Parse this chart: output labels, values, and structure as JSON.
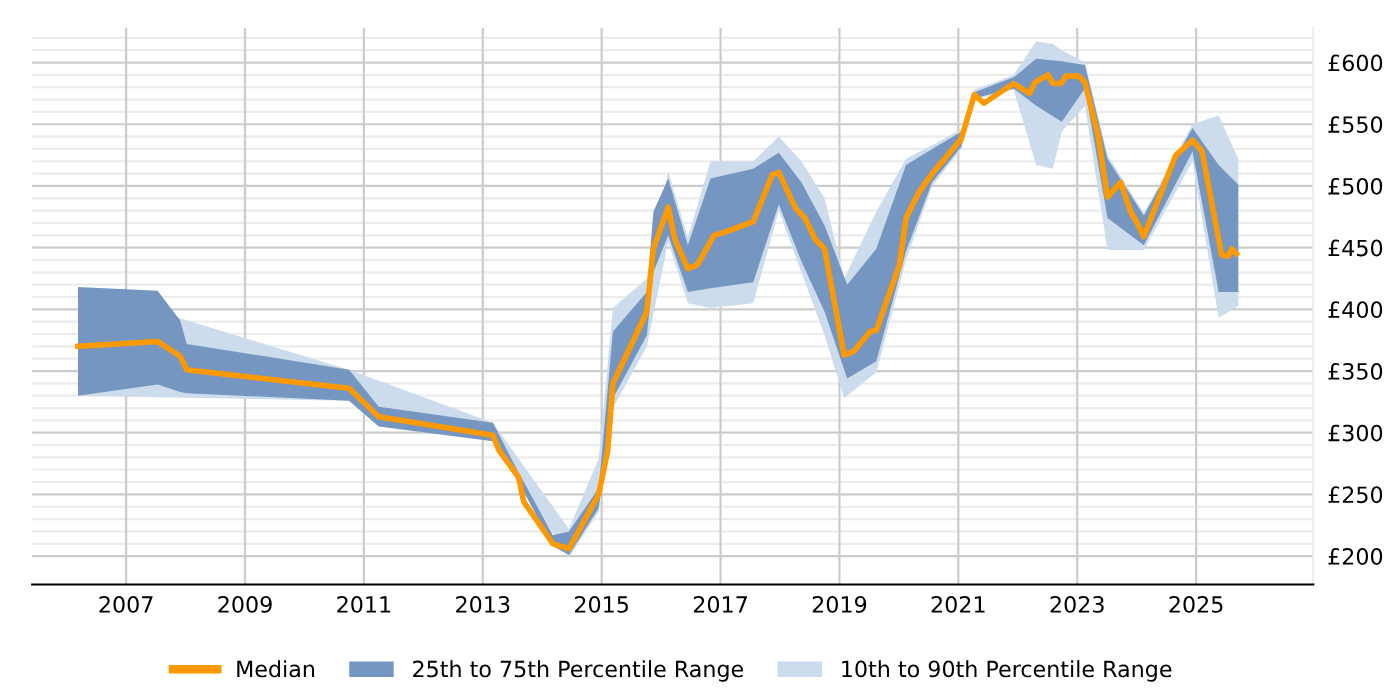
{
  "chart_data": {
    "type": "line",
    "xlim": [
      2005.42,
      2026.97
    ],
    "xticks": [
      2007,
      2009,
      2011,
      2013,
      2015,
      2017,
      2019,
      2021,
      2023,
      2025
    ],
    "ylim": [
      177,
      628
    ],
    "yticks": [
      {
        "value": 200,
        "label": "£200"
      },
      {
        "value": 210,
        "label": null
      },
      {
        "value": 220,
        "label": null
      },
      {
        "value": 230,
        "label": null
      },
      {
        "value": 240,
        "label": null
      },
      {
        "value": 250,
        "label": "£250"
      },
      {
        "value": 260,
        "label": null
      },
      {
        "value": 270,
        "label": null
      },
      {
        "value": 280,
        "label": null
      },
      {
        "value": 290,
        "label": null
      },
      {
        "value": 300,
        "label": "£300"
      },
      {
        "value": 310,
        "label": null
      },
      {
        "value": 320,
        "label": null
      },
      {
        "value": 330,
        "label": null
      },
      {
        "value": 340,
        "label": null
      },
      {
        "value": 350,
        "label": "£350"
      },
      {
        "value": 360,
        "label": null
      },
      {
        "value": 370,
        "label": null
      },
      {
        "value": 380,
        "label": null
      },
      {
        "value": 390,
        "label": null
      },
      {
        "value": 400,
        "label": "£400"
      },
      {
        "value": 410,
        "label": null
      },
      {
        "value": 420,
        "label": null
      },
      {
        "value": 430,
        "label": null
      },
      {
        "value": 440,
        "label": null
      },
      {
        "value": 450,
        "label": "£450"
      },
      {
        "value": 460,
        "label": null
      },
      {
        "value": 470,
        "label": null
      },
      {
        "value": 480,
        "label": null
      },
      {
        "value": 490,
        "label": null
      },
      {
        "value": 500,
        "label": "£500"
      },
      {
        "value": 510,
        "label": null
      },
      {
        "value": 520,
        "label": null
      },
      {
        "value": 530,
        "label": null
      },
      {
        "value": 540,
        "label": null
      },
      {
        "value": 550,
        "label": "£550"
      },
      {
        "value": 560,
        "label": null
      },
      {
        "value": 570,
        "label": null
      },
      {
        "value": 580,
        "label": null
      },
      {
        "value": 590,
        "label": null
      },
      {
        "value": 600,
        "label": "£600"
      },
      {
        "value": 610,
        "label": null
      },
      {
        "value": 620,
        "label": null
      }
    ],
    "grid": true,
    "legend": "bottom",
    "marker": "none",
    "line_style": "solid",
    "series": [
      {
        "name": "Median",
        "type": "line",
        "color": "#ff9900",
        "x": [
          2006.19,
          2007.53,
          2007.91,
          2008.02,
          2010.75,
          2011.25,
          2013.17,
          2013.27,
          2013.6,
          2013.69,
          2014.18,
          2014.45,
          2014.95,
          2015.1,
          2015.19,
          2015.76,
          2015.87,
          2016.12,
          2016.23,
          2016.45,
          2016.61,
          2016.89,
          2017.1,
          2017.55,
          2017.87,
          2017.98,
          2018.26,
          2018.42,
          2018.59,
          2018.75,
          2019.08,
          2019.24,
          2019.52,
          2019.62,
          2020.01,
          2020.12,
          2020.34,
          2020.56,
          2021.05,
          2021.27,
          2021.43,
          2021.93,
          2022.2,
          2022.29,
          2022.51,
          2022.59,
          2022.73,
          2022.81,
          2023.02,
          2023.13,
          2023.35,
          2023.51,
          2023.73,
          2023.9,
          2024.0,
          2024.12,
          2024.66,
          2024.94,
          2025.1,
          2025.43,
          2025.54,
          2025.6,
          2025.68
        ],
        "values": [
          370,
          374,
          362,
          351,
          336,
          313,
          298,
          286,
          264,
          244,
          210,
          206,
          250,
          285,
          340,
          398,
          449,
          483,
          457,
          433,
          436,
          460,
          463,
          471,
          509,
          511,
          482,
          474,
          457,
          449,
          363,
          366,
          382,
          383,
          436,
          474,
          495,
          510,
          538,
          574,
          567,
          583,
          575,
          584,
          590,
          583,
          583,
          589,
          589,
          584,
          541,
          491,
          503,
          479,
          471,
          459,
          525,
          537,
          528,
          444,
          443,
          449,
          445
        ]
      },
      {
        "name": "25th to 75th Percentile Range",
        "type": "area",
        "color": "#7596c0",
        "x": [
          2006.19,
          2007.53,
          2007.91,
          2008.02,
          2010.75,
          2011.25,
          2013.17,
          2013.6,
          2014.18,
          2014.45,
          2014.95,
          2015.19,
          2015.76,
          2015.87,
          2016.12,
          2016.45,
          2016.83,
          2017.55,
          2017.98,
          2018.36,
          2018.75,
          2019.13,
          2019.62,
          2020.12,
          2020.56,
          2021.05,
          2021.27,
          2021.93,
          2022.31,
          2022.74,
          2023.13,
          2023.51,
          2024.12,
          2024.94,
          2025.38,
          2025.71
        ],
        "values": [
          null,
          null,
          null,
          null,
          null,
          null,
          null,
          null,
          null,
          null,
          null,
          null,
          null,
          null,
          null,
          null,
          null,
          null,
          null,
          null,
          null,
          null,
          null,
          null,
          null,
          null,
          null,
          null,
          null,
          null,
          null,
          null,
          null,
          null,
          null,
          null
        ],
        "upper": [
          418,
          415,
          391,
          372,
          351,
          321,
          308,
          268,
          217,
          220,
          255,
          382,
          414,
          479,
          506,
          452,
          506,
          514,
          527,
          503,
          468,
          420,
          449,
          517,
          530,
          544,
          576,
          588,
          603,
          601,
          598,
          522,
          476,
          547,
          517,
          501
        ],
        "lower": [
          330,
          339,
          333,
          332,
          326,
          305,
          293,
          260,
          208,
          201,
          239,
          328,
          379,
          430,
          460,
          414,
          417,
          422,
          485,
          439,
          398,
          344,
          358,
          447,
          503,
          532,
          571,
          579,
          565,
          552,
          579,
          474,
          452,
          528,
          414,
          414
        ]
      },
      {
        "name": "10th to 90th Percentile Range",
        "type": "area",
        "color": "#ccdcec",
        "x": [
          2006.19,
          2010.75,
          2013.17,
          2014.45,
          2014.95,
          2015.19,
          2015.76,
          2016.12,
          2016.45,
          2016.83,
          2017.55,
          2017.98,
          2018.36,
          2018.75,
          2019.08,
          2019.62,
          2020.12,
          2020.56,
          2021.05,
          2021.27,
          2021.93,
          2022.31,
          2022.59,
          2022.74,
          2023.13,
          2023.51,
          2024.12,
          2024.94,
          2025.38,
          2025.71
        ],
        "values": [
          null,
          null,
          null,
          null,
          null,
          null,
          null,
          null,
          null,
          null,
          null,
          null,
          null,
          null,
          null,
          null,
          null,
          null,
          null,
          null,
          null,
          null,
          null,
          null,
          null,
          null,
          null,
          null,
          null,
          null
        ],
        "upper": [
          418,
          351,
          308,
          222,
          279,
          401,
          425,
          512,
          458,
          520,
          520,
          540,
          520,
          490,
          425,
          479,
          522,
          533,
          546,
          578,
          590,
          617,
          615,
          610,
          600,
          525,
          478,
          550,
          557,
          522
        ],
        "lower": [
          330,
          326,
          293,
          199,
          236,
          320,
          370,
          455,
          405,
          401,
          405,
          480,
          430,
          379,
          328,
          349,
          440,
          500,
          530,
          570,
          578,
          517,
          514,
          544,
          565,
          448,
          448,
          520,
          393,
          403
        ]
      }
    ]
  }
}
